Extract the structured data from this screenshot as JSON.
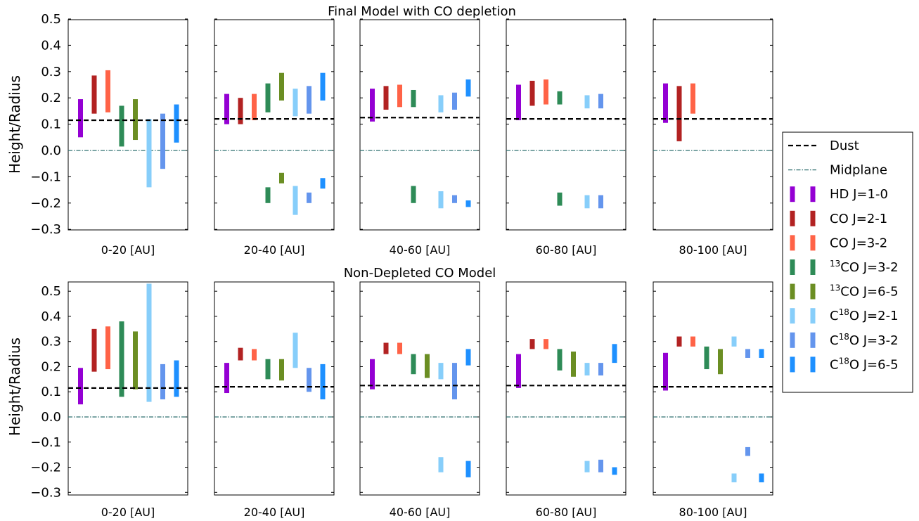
{
  "series_colors": {
    "HD J=1-0": "#9400d3",
    "CO J=2-1": "#b22222",
    "CO J=3-2": "#ff6347",
    "13CO J=3-2": "#2e8b57",
    "13CO J=6-5": "#6b8e23",
    "C18O J=2-1": "#87cefa",
    "C18O J=3-2": "#6495ed",
    "C18O J=6-5": "#1e90ff"
  },
  "line_colors": {
    "dust": "#000000",
    "midplane": "#2f6f6f"
  },
  "chart_data": [
    {
      "type": "bar",
      "title": "Final Model with CO depletion",
      "ylabel": "Height/Radius",
      "ylim": [
        -0.3,
        0.5
      ],
      "yticks": [
        "0.5",
        "0.4",
        "0.3",
        "0.2",
        "0.1",
        "0.0",
        "−0.1",
        "−0.2",
        "−0.3"
      ],
      "ytick_values": [
        0.5,
        0.4,
        0.3,
        0.2,
        0.1,
        0.0,
        -0.1,
        -0.2,
        -0.3
      ],
      "panels": [
        {
          "label": "0-20 [AU]",
          "dust": 0.115,
          "bars": [
            {
              "series": "HD J=1-0",
              "lo": 0.05,
              "hi": 0.195
            },
            {
              "series": "CO J=2-1",
              "lo": 0.14,
              "hi": 0.285
            },
            {
              "series": "CO J=3-2",
              "lo": 0.145,
              "hi": 0.305
            },
            {
              "series": "13CO J=3-2",
              "lo": 0.015,
              "hi": 0.17
            },
            {
              "series": "13CO J=6-5",
              "lo": 0.04,
              "hi": 0.195
            },
            {
              "series": "C18O J=2-1",
              "lo": -0.14,
              "hi": 0.12
            },
            {
              "series": "C18O J=3-2",
              "lo": -0.07,
              "hi": 0.14
            },
            {
              "series": "C18O J=6-5",
              "lo": 0.03,
              "hi": 0.175
            }
          ]
        },
        {
          "label": "20-40 [AU]",
          "dust": 0.12,
          "bars": [
            {
              "series": "HD J=1-0",
              "lo": 0.1,
              "hi": 0.215
            },
            {
              "series": "CO J=2-1",
              "lo": 0.1,
              "hi": 0.2
            },
            {
              "series": "CO J=3-2",
              "lo": 0.115,
              "hi": 0.215
            },
            {
              "series": "13CO J=3-2",
              "lo": 0.145,
              "hi": 0.255
            },
            {
              "series": "13CO J=6-5",
              "lo": 0.19,
              "hi": 0.295
            },
            {
              "series": "C18O J=2-1",
              "lo": 0.13,
              "hi": 0.235
            },
            {
              "series": "C18O J=3-2",
              "lo": 0.14,
              "hi": 0.245
            },
            {
              "series": "C18O J=6-5",
              "lo": 0.19,
              "hi": 0.295
            },
            {
              "series": "13CO J=3-2",
              "lo": -0.2,
              "hi": -0.14
            },
            {
              "series": "13CO J=6-5",
              "lo": -0.125,
              "hi": -0.085
            },
            {
              "series": "C18O J=2-1",
              "lo": -0.245,
              "hi": -0.135
            },
            {
              "series": "C18O J=3-2",
              "lo": -0.2,
              "hi": -0.16
            },
            {
              "series": "C18O J=6-5",
              "lo": -0.145,
              "hi": -0.105
            }
          ]
        },
        {
          "label": "40-60 [AU]",
          "dust": 0.125,
          "bars": [
            {
              "series": "HD J=1-0",
              "lo": 0.11,
              "hi": 0.235
            },
            {
              "series": "CO J=2-1",
              "lo": 0.155,
              "hi": 0.245
            },
            {
              "series": "CO J=3-2",
              "lo": 0.165,
              "hi": 0.25
            },
            {
              "series": "13CO J=3-2",
              "lo": 0.165,
              "hi": 0.23
            },
            {
              "series": "C18O J=2-1",
              "lo": 0.145,
              "hi": 0.21
            },
            {
              "series": "C18O J=3-2",
              "lo": 0.155,
              "hi": 0.22
            },
            {
              "series": "C18O J=6-5",
              "lo": 0.205,
              "hi": 0.27
            },
            {
              "series": "13CO J=3-2",
              "lo": -0.2,
              "hi": -0.135
            },
            {
              "series": "C18O J=2-1",
              "lo": -0.22,
              "hi": -0.155
            },
            {
              "series": "C18O J=3-2",
              "lo": -0.2,
              "hi": -0.17
            },
            {
              "series": "C18O J=6-5",
              "lo": -0.215,
              "hi": -0.19
            }
          ]
        },
        {
          "label": "60-80 [AU]",
          "dust": 0.12,
          "bars": [
            {
              "series": "HD J=1-0",
              "lo": 0.115,
              "hi": 0.25
            },
            {
              "series": "CO J=2-1",
              "lo": 0.17,
              "hi": 0.265
            },
            {
              "series": "CO J=3-2",
              "lo": 0.175,
              "hi": 0.27
            },
            {
              "series": "13CO J=3-2",
              "lo": 0.175,
              "hi": 0.225
            },
            {
              "series": "C18O J=2-1",
              "lo": 0.16,
              "hi": 0.21
            },
            {
              "series": "C18O J=3-2",
              "lo": 0.16,
              "hi": 0.215
            },
            {
              "series": "13CO J=3-2",
              "lo": -0.21,
              "hi": -0.16
            },
            {
              "series": "C18O J=2-1",
              "lo": -0.22,
              "hi": -0.17
            },
            {
              "series": "C18O J=3-2",
              "lo": -0.22,
              "hi": -0.17
            }
          ]
        },
        {
          "label": "80-100 [AU]",
          "dust": 0.12,
          "bars": [
            {
              "series": "HD J=1-0",
              "lo": 0.105,
              "hi": 0.255
            },
            {
              "series": "CO J=2-1",
              "lo": 0.035,
              "hi": 0.245
            },
            {
              "series": "CO J=3-2",
              "lo": 0.14,
              "hi": 0.255
            }
          ]
        }
      ]
    },
    {
      "type": "bar",
      "title": "Non-Depleted CO Model",
      "ylabel": "Height/Radius",
      "ylim": [
        -0.3,
        0.55
      ],
      "yticks": [
        "0.5",
        "0.4",
        "0.3",
        "0.2",
        "0.1",
        "0.0",
        "−0.1",
        "−0.2",
        "−0.3"
      ],
      "ytick_values": [
        0.5,
        0.4,
        0.3,
        0.2,
        0.1,
        0.0,
        -0.1,
        -0.2,
        -0.3
      ],
      "panels": [
        {
          "label": "0-20 [AU]",
          "dust": 0.115,
          "bars": [
            {
              "series": "HD J=1-0",
              "lo": 0.05,
              "hi": 0.195
            },
            {
              "series": "CO J=2-1",
              "lo": 0.18,
              "hi": 0.35
            },
            {
              "series": "CO J=3-2",
              "lo": 0.19,
              "hi": 0.36
            },
            {
              "series": "13CO J=3-2",
              "lo": 0.08,
              "hi": 0.38
            },
            {
              "series": "13CO J=6-5",
              "lo": 0.11,
              "hi": 0.34
            },
            {
              "series": "C18O J=2-1",
              "lo": 0.06,
              "hi": 0.53
            },
            {
              "series": "C18O J=3-2",
              "lo": 0.07,
              "hi": 0.21
            },
            {
              "series": "C18O J=6-5",
              "lo": 0.08,
              "hi": 0.225
            }
          ]
        },
        {
          "label": "20-40 [AU]",
          "dust": 0.12,
          "bars": [
            {
              "series": "HD J=1-0",
              "lo": 0.095,
              "hi": 0.215
            },
            {
              "series": "CO J=2-1",
              "lo": 0.225,
              "hi": 0.275
            },
            {
              "series": "CO J=3-2",
              "lo": 0.225,
              "hi": 0.27
            },
            {
              "series": "13CO J=3-2",
              "lo": 0.15,
              "hi": 0.23
            },
            {
              "series": "13CO J=6-5",
              "lo": 0.145,
              "hi": 0.23
            },
            {
              "series": "C18O J=2-1",
              "lo": 0.195,
              "hi": 0.335
            },
            {
              "series": "C18O J=3-2",
              "lo": 0.1,
              "hi": 0.195
            },
            {
              "series": "C18O J=6-5",
              "lo": 0.07,
              "hi": 0.21
            }
          ]
        },
        {
          "label": "40-60 [AU]",
          "dust": 0.125,
          "bars": [
            {
              "series": "HD J=1-0",
              "lo": 0.11,
              "hi": 0.23
            },
            {
              "series": "CO J=2-1",
              "lo": 0.25,
              "hi": 0.295
            },
            {
              "series": "CO J=3-2",
              "lo": 0.25,
              "hi": 0.295
            },
            {
              "series": "13CO J=3-2",
              "lo": 0.17,
              "hi": 0.25
            },
            {
              "series": "13CO J=6-5",
              "lo": 0.155,
              "hi": 0.25
            },
            {
              "series": "C18O J=2-1",
              "lo": 0.15,
              "hi": 0.215
            },
            {
              "series": "C18O J=3-2",
              "lo": 0.07,
              "hi": 0.215
            },
            {
              "series": "C18O J=6-5",
              "lo": 0.205,
              "hi": 0.27
            },
            {
              "series": "C18O J=2-1",
              "lo": -0.22,
              "hi": -0.16
            },
            {
              "series": "C18O J=6-5",
              "lo": -0.24,
              "hi": -0.175
            }
          ]
        },
        {
          "label": "60-80 [AU]",
          "dust": 0.125,
          "bars": [
            {
              "series": "HD J=1-0",
              "lo": 0.115,
              "hi": 0.25
            },
            {
              "series": "CO J=2-1",
              "lo": 0.27,
              "hi": 0.31
            },
            {
              "series": "CO J=3-2",
              "lo": 0.27,
              "hi": 0.31
            },
            {
              "series": "13CO J=3-2",
              "lo": 0.185,
              "hi": 0.27
            },
            {
              "series": "13CO J=6-5",
              "lo": 0.16,
              "hi": 0.26
            },
            {
              "series": "C18O J=2-1",
              "lo": 0.165,
              "hi": 0.215
            },
            {
              "series": "C18O J=3-2",
              "lo": 0.165,
              "hi": 0.215
            },
            {
              "series": "C18O J=6-5",
              "lo": 0.215,
              "hi": 0.29
            },
            {
              "series": "C18O J=2-1",
              "lo": -0.22,
              "hi": -0.175
            },
            {
              "series": "C18O J=3-2",
              "lo": -0.22,
              "hi": -0.17
            },
            {
              "series": "C18O J=6-5",
              "lo": -0.23,
              "hi": -0.2
            }
          ]
        },
        {
          "label": "80-100 [AU]",
          "dust": 0.12,
          "bars": [
            {
              "series": "HD J=1-0",
              "lo": 0.105,
              "hi": 0.255
            },
            {
              "series": "CO J=2-1",
              "lo": 0.28,
              "hi": 0.32
            },
            {
              "series": "CO J=3-2",
              "lo": 0.28,
              "hi": 0.32
            },
            {
              "series": "13CO J=3-2",
              "lo": 0.19,
              "hi": 0.28
            },
            {
              "series": "13CO J=6-5",
              "lo": 0.17,
              "hi": 0.27
            },
            {
              "series": "C18O J=2-1",
              "lo": 0.28,
              "hi": 0.32
            },
            {
              "series": "C18O J=3-2",
              "lo": 0.235,
              "hi": 0.27
            },
            {
              "series": "C18O J=6-5",
              "lo": 0.235,
              "hi": 0.27
            },
            {
              "series": "C18O J=2-1",
              "lo": -0.26,
              "hi": -0.225
            },
            {
              "series": "C18O J=3-2",
              "lo": -0.155,
              "hi": -0.12
            },
            {
              "series": "C18O J=6-5",
              "lo": -0.26,
              "hi": -0.225
            }
          ]
        }
      ]
    }
  ],
  "legend": {
    "items": [
      {
        "kind": "dash",
        "label": "Dust"
      },
      {
        "kind": "dashdot",
        "label": "Midplane"
      },
      {
        "kind": "bar",
        "series": "HD J=1-0",
        "label": "HD J=1-0"
      },
      {
        "kind": "bar",
        "series": "CO J=2-1",
        "label": "CO J=2-1"
      },
      {
        "kind": "bar",
        "series": "CO J=3-2",
        "label": "CO J=3-2"
      },
      {
        "kind": "bar",
        "series": "13CO J=3-2",
        "sup": "13",
        "label": "CO J=3-2"
      },
      {
        "kind": "bar",
        "series": "13CO J=6-5",
        "sup": "13",
        "label": "CO J=6-5"
      },
      {
        "kind": "bar",
        "series": "C18O J=2-1",
        "pre": "C",
        "sup": "18",
        "label": "O J=2-1"
      },
      {
        "kind": "bar",
        "series": "C18O J=3-2",
        "pre": "C",
        "sup": "18",
        "label": "O J=3-2"
      },
      {
        "kind": "bar",
        "series": "C18O J=6-5",
        "pre": "C",
        "sup": "18",
        "label": "O J=6-5"
      }
    ]
  }
}
